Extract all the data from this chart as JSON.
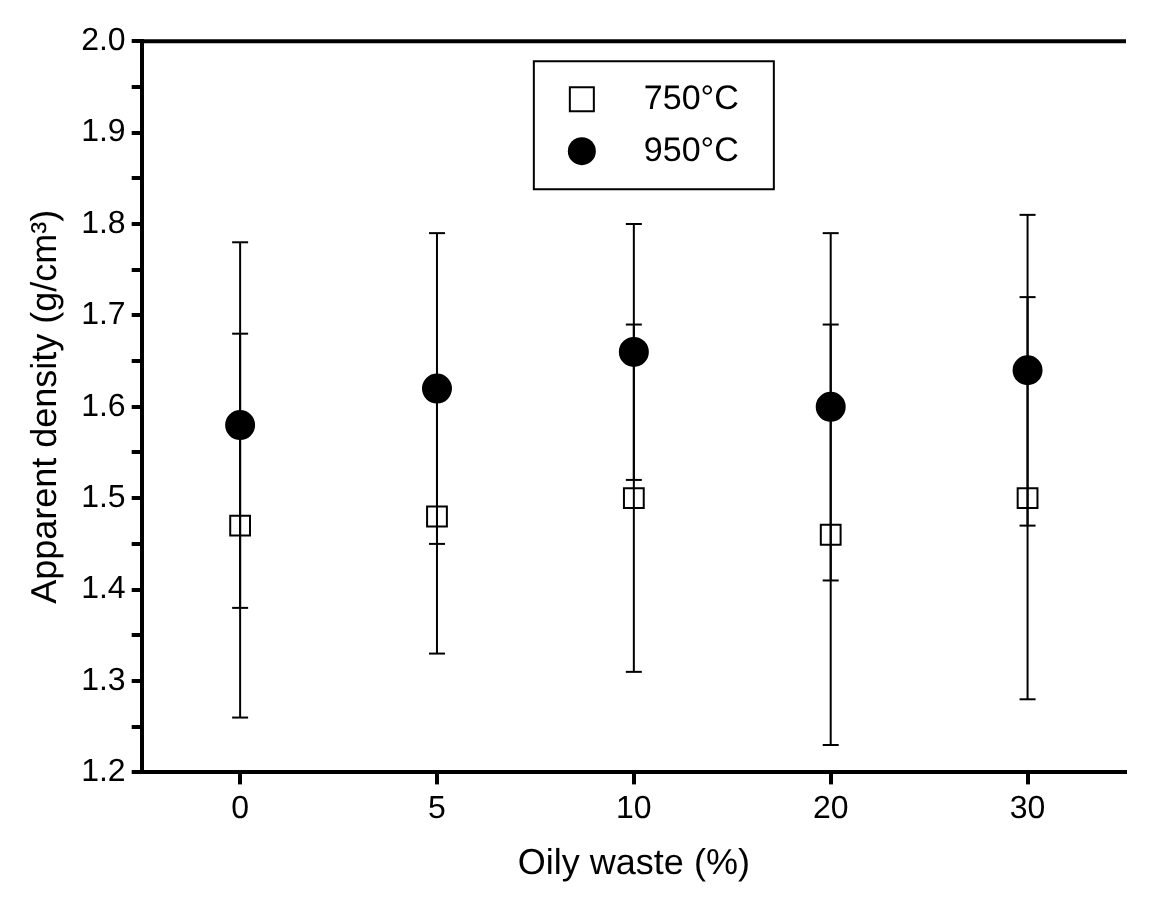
{
  "chart_data": {
    "type": "scatter",
    "xlabel": "Oily waste (%)",
    "ylabel": "Apparent density (g/cm³)",
    "categories": [
      "0",
      "5",
      "10",
      "20",
      "30"
    ],
    "series": [
      {
        "name": "750°C",
        "color": "#000000",
        "marker": "square",
        "values": [
          1.47,
          1.48,
          1.5,
          1.46,
          1.5
        ],
        "errors": [
          0.21,
          0.15,
          0.19,
          0.23,
          0.22
        ]
      },
      {
        "name": "950°C",
        "color": "#000000",
        "marker": "circle",
        "values": [
          1.58,
          1.62,
          1.66,
          1.6,
          1.64
        ],
        "errors": [
          0.2,
          0.17,
          0.14,
          0.19,
          0.17
        ]
      }
    ],
    "ylim": [
      1.2,
      2.0
    ],
    "yticks": [
      1.2,
      {
        "value": 1.25,
        "label": null
      },
      1.3,
      {
        "value": 1.35,
        "label": null
      },
      1.4,
      {
        "value": 1.45,
        "label": null
      },
      1.5,
      {
        "value": 1.55,
        "label": null
      },
      1.6,
      {
        "value": 1.65,
        "label": null
      },
      1.7,
      {
        "value": 1.75,
        "label": null
      },
      1.8,
      {
        "value": 1.85,
        "label": null
      },
      1.9,
      {
        "value": 1.95,
        "label": null
      },
      {
        "value": 2.0,
        "label": "2.0"
      }
    ],
    "grid": false,
    "legend": "top"
  }
}
